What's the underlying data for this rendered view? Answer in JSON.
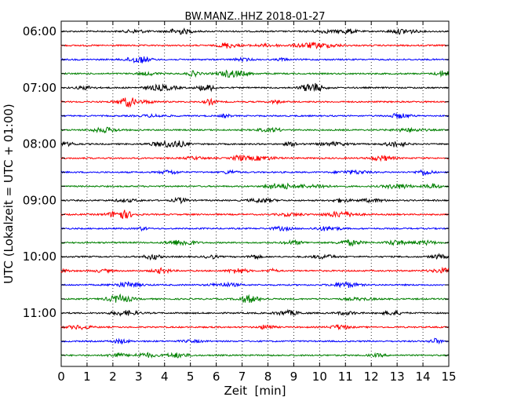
{
  "chart_data": {
    "type": "line",
    "title": "BW.MANZ..HHZ 2018-01-27",
    "xlabel": "Zeit  [min]",
    "ylabel": "UTC (Lokalzeit = UTC + 01:00)",
    "xlim": [
      0,
      15
    ],
    "x_ticks": [
      0,
      1,
      2,
      3,
      4,
      5,
      6,
      7,
      8,
      9,
      10,
      11,
      12,
      13,
      14,
      15
    ],
    "x_tick_labels": [
      "0",
      "1",
      "2",
      "3",
      "4",
      "5",
      "6",
      "7",
      "8",
      "9",
      "10",
      "11",
      "12",
      "13",
      "14",
      "15"
    ],
    "y_tick_labels": [
      "06:00",
      "07:00",
      "08:00",
      "09:00",
      "10:00",
      "11:00"
    ],
    "start_time": "06:00",
    "trace_interval_min": 15,
    "trace_count": 24,
    "vertical_grid": true,
    "grid_style": "dotted",
    "trace_colors": [
      "#000000",
      "#ff0000",
      "#0000ff",
      "#008000"
    ],
    "traces": [
      {
        "start": "06:00",
        "color": "#000000"
      },
      {
        "start": "06:15",
        "color": "#ff0000"
      },
      {
        "start": "06:30",
        "color": "#0000ff"
      },
      {
        "start": "06:45",
        "color": "#008000"
      },
      {
        "start": "07:00",
        "color": "#000000"
      },
      {
        "start": "07:15",
        "color": "#ff0000"
      },
      {
        "start": "07:30",
        "color": "#0000ff"
      },
      {
        "start": "07:45",
        "color": "#008000"
      },
      {
        "start": "08:00",
        "color": "#000000"
      },
      {
        "start": "08:15",
        "color": "#ff0000"
      },
      {
        "start": "08:30",
        "color": "#0000ff"
      },
      {
        "start": "08:45",
        "color": "#008000"
      },
      {
        "start": "09:00",
        "color": "#000000"
      },
      {
        "start": "09:15",
        "color": "#ff0000"
      },
      {
        "start": "09:30",
        "color": "#0000ff"
      },
      {
        "start": "09:45",
        "color": "#008000"
      },
      {
        "start": "10:00",
        "color": "#000000"
      },
      {
        "start": "10:15",
        "color": "#ff0000"
      },
      {
        "start": "10:30",
        "color": "#0000ff"
      },
      {
        "start": "10:45",
        "color": "#008000"
      },
      {
        "start": "11:00",
        "color": "#000000"
      },
      {
        "start": "11:15",
        "color": "#ff0000"
      },
      {
        "start": "11:30",
        "color": "#0000ff"
      },
      {
        "start": "11:45",
        "color": "#008000"
      }
    ]
  }
}
